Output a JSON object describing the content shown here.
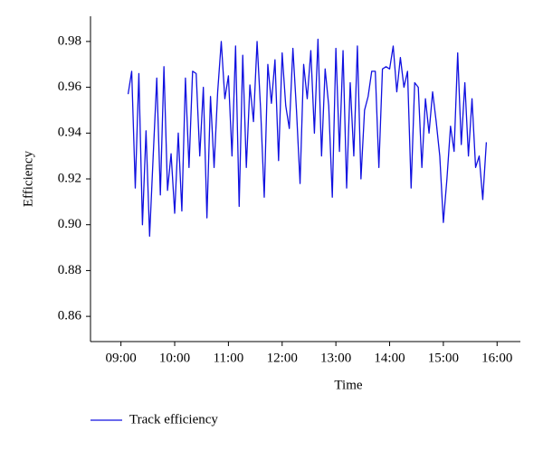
{
  "chart_data": {
    "type": "line",
    "x_label": "Time",
    "y_label": "Efficiency",
    "x": [
      "09:08",
      "09:12",
      "09:16",
      "09:20",
      "09:24",
      "09:28",
      "09:32",
      "09:36",
      "09:40",
      "09:44",
      "09:48",
      "09:52",
      "09:56",
      "10:00",
      "10:04",
      "10:08",
      "10:12",
      "10:16",
      "10:20",
      "10:24",
      "10:28",
      "10:32",
      "10:36",
      "10:40",
      "10:44",
      "10:48",
      "10:52",
      "10:56",
      "11:00",
      "11:04",
      "11:08",
      "11:12",
      "11:16",
      "11:20",
      "11:24",
      "11:28",
      "11:32",
      "11:36",
      "11:40",
      "11:44",
      "11:48",
      "11:52",
      "11:56",
      "12:00",
      "12:04",
      "12:08",
      "12:12",
      "12:16",
      "12:20",
      "12:24",
      "12:28",
      "12:32",
      "12:36",
      "12:40",
      "12:44",
      "12:48",
      "12:52",
      "12:56",
      "13:00",
      "13:04",
      "13:08",
      "13:12",
      "13:16",
      "13:20",
      "13:24",
      "13:28",
      "13:32",
      "13:36",
      "13:40",
      "13:44",
      "13:48",
      "13:52",
      "13:56",
      "14:00",
      "14:04",
      "14:08",
      "14:12",
      "14:16",
      "14:20",
      "14:24",
      "14:28",
      "14:32",
      "14:36",
      "14:40",
      "14:44",
      "14:48",
      "14:52",
      "14:56",
      "15:00",
      "15:04",
      "15:08",
      "15:12",
      "15:16",
      "15:20",
      "15:24",
      "15:28",
      "15:32",
      "15:36",
      "15:40",
      "15:44",
      "15:48"
    ],
    "series": [
      {
        "name": "Track efficiency",
        "color": "#1010e0",
        "values": [
          0.957,
          0.967,
          0.916,
          0.966,
          0.9,
          0.941,
          0.895,
          0.93,
          0.964,
          0.913,
          0.969,
          0.915,
          0.931,
          0.905,
          0.94,
          0.906,
          0.964,
          0.925,
          0.967,
          0.966,
          0.93,
          0.96,
          0.903,
          0.956,
          0.925,
          0.958,
          0.98,
          0.955,
          0.965,
          0.93,
          0.978,
          0.908,
          0.974,
          0.925,
          0.961,
          0.945,
          0.98,
          0.95,
          0.912,
          0.97,
          0.953,
          0.972,
          0.928,
          0.975,
          0.952,
          0.942,
          0.977,
          0.95,
          0.918,
          0.97,
          0.955,
          0.976,
          0.94,
          0.981,
          0.93,
          0.968,
          0.952,
          0.912,
          0.977,
          0.932,
          0.976,
          0.916,
          0.962,
          0.93,
          0.978,
          0.92,
          0.95,
          0.956,
          0.967,
          0.967,
          0.925,
          0.968,
          0.969,
          0.968,
          0.978,
          0.958,
          0.973,
          0.96,
          0.967,
          0.916,
          0.962,
          0.96,
          0.925,
          0.955,
          0.94,
          0.958,
          0.945,
          0.93,
          0.901,
          0.92,
          0.943,
          0.932,
          0.975,
          0.935,
          0.962,
          0.93,
          0.955,
          0.925,
          0.93,
          0.911,
          0.936
        ]
      }
    ],
    "xlim": [
      "08:26",
      "16:26"
    ],
    "xticks": [
      "09:00",
      "10:00",
      "11:00",
      "12:00",
      "13:00",
      "14:00",
      "15:00",
      "16:00"
    ],
    "ylim": [
      0.849,
      0.991
    ],
    "yticks": [
      0.86,
      0.88,
      {
        "value": 0.9,
        "label": "0.90"
      },
      0.92,
      0.94,
      0.96,
      0.98
    ],
    "legend": "bottom-left"
  }
}
